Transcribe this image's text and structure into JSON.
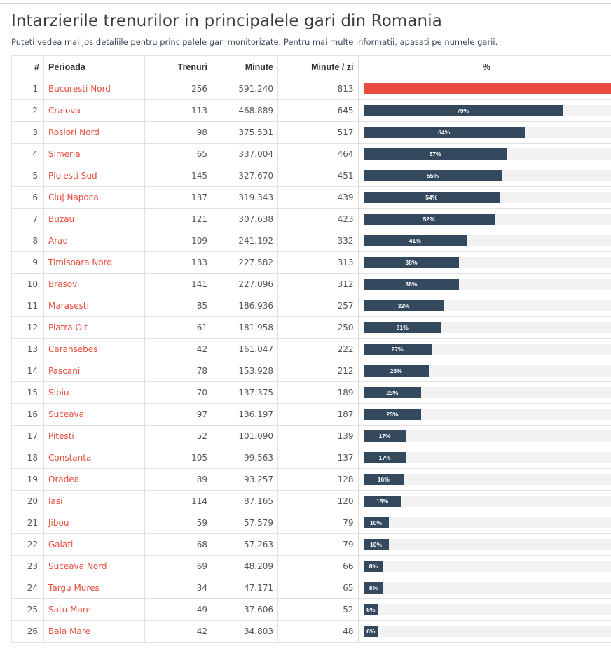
{
  "page": {
    "title": "Intarzierile trenurilor in principalele gari din Romania",
    "subtitle": "Puteti vedea mai jos detaliile pentru principalele gari monitorizate. Pentru mai multe informatii, apasati pe numele garii."
  },
  "table": {
    "headers": {
      "rank": "#",
      "name": "Perioada",
      "trenuri": "Trenuri",
      "minute": "Minute",
      "minute_zi": "Minute / zi",
      "pct": "%"
    },
    "colors": {
      "bar": "#34495e",
      "bar_top": "#e74c3c",
      "link": "#e74c3c"
    },
    "rows": [
      {
        "rank": "1",
        "name": "Bucuresti Nord",
        "trenuri": "256",
        "minute": "591.240",
        "minute_zi": "813",
        "pct": 100,
        "pct_label": ""
      },
      {
        "rank": "2",
        "name": "Craiova",
        "trenuri": "113",
        "minute": "468.889",
        "minute_zi": "645",
        "pct": 79,
        "pct_label": "79%"
      },
      {
        "rank": "3",
        "name": "Rosiori Nord",
        "trenuri": "98",
        "minute": "375.531",
        "minute_zi": "517",
        "pct": 64,
        "pct_label": "64%"
      },
      {
        "rank": "4",
        "name": "Simeria",
        "trenuri": "65",
        "minute": "337.004",
        "minute_zi": "464",
        "pct": 57,
        "pct_label": "57%"
      },
      {
        "rank": "5",
        "name": "Ploiesti Sud",
        "trenuri": "145",
        "minute": "327.670",
        "minute_zi": "451",
        "pct": 55,
        "pct_label": "55%"
      },
      {
        "rank": "6",
        "name": "Cluj Napoca",
        "trenuri": "137",
        "minute": "319.343",
        "minute_zi": "439",
        "pct": 54,
        "pct_label": "54%"
      },
      {
        "rank": "7",
        "name": "Buzau",
        "trenuri": "121",
        "minute": "307.638",
        "minute_zi": "423",
        "pct": 52,
        "pct_label": "52%"
      },
      {
        "rank": "8",
        "name": "Arad",
        "trenuri": "109",
        "minute": "241.192",
        "minute_zi": "332",
        "pct": 41,
        "pct_label": "41%"
      },
      {
        "rank": "9",
        "name": "Timisoara Nord",
        "trenuri": "133",
        "minute": "227.582",
        "minute_zi": "313",
        "pct": 38,
        "pct_label": "38%"
      },
      {
        "rank": "10",
        "name": "Brasov",
        "trenuri": "141",
        "minute": "227.096",
        "minute_zi": "312",
        "pct": 38,
        "pct_label": "38%"
      },
      {
        "rank": "11",
        "name": "Marasesti",
        "trenuri": "85",
        "minute": "186.936",
        "minute_zi": "257",
        "pct": 32,
        "pct_label": "32%"
      },
      {
        "rank": "12",
        "name": "Piatra Olt",
        "trenuri": "61",
        "minute": "181.958",
        "minute_zi": "250",
        "pct": 31,
        "pct_label": "31%"
      },
      {
        "rank": "13",
        "name": "Caransebes",
        "trenuri": "42",
        "minute": "161.047",
        "minute_zi": "222",
        "pct": 27,
        "pct_label": "27%"
      },
      {
        "rank": "14",
        "name": "Pascani",
        "trenuri": "78",
        "minute": "153.928",
        "minute_zi": "212",
        "pct": 26,
        "pct_label": "26%"
      },
      {
        "rank": "15",
        "name": "Sibiu",
        "trenuri": "70",
        "minute": "137.375",
        "minute_zi": "189",
        "pct": 23,
        "pct_label": "23%"
      },
      {
        "rank": "16",
        "name": "Suceava",
        "trenuri": "97",
        "minute": "136.197",
        "minute_zi": "187",
        "pct": 23,
        "pct_label": "23%"
      },
      {
        "rank": "17",
        "name": "Pitesti",
        "trenuri": "52",
        "minute": "101.090",
        "minute_zi": "139",
        "pct": 17,
        "pct_label": "17%"
      },
      {
        "rank": "18",
        "name": "Constanta",
        "trenuri": "105",
        "minute": "99.563",
        "minute_zi": "137",
        "pct": 17,
        "pct_label": "17%"
      },
      {
        "rank": "19",
        "name": "Oradea",
        "trenuri": "89",
        "minute": "93.257",
        "minute_zi": "128",
        "pct": 16,
        "pct_label": "16%"
      },
      {
        "rank": "20",
        "name": "Iasi",
        "trenuri": "114",
        "minute": "87.165",
        "minute_zi": "120",
        "pct": 15,
        "pct_label": "15%"
      },
      {
        "rank": "21",
        "name": "Jibou",
        "trenuri": "59",
        "minute": "57.579",
        "minute_zi": "79",
        "pct": 10,
        "pct_label": "10%"
      },
      {
        "rank": "22",
        "name": "Galati",
        "trenuri": "68",
        "minute": "57.263",
        "minute_zi": "79",
        "pct": 10,
        "pct_label": "10%"
      },
      {
        "rank": "23",
        "name": "Suceava Nord",
        "trenuri": "69",
        "minute": "48.209",
        "minute_zi": "66",
        "pct": 8,
        "pct_label": "8%"
      },
      {
        "rank": "24",
        "name": "Targu Mures",
        "trenuri": "34",
        "minute": "47.171",
        "minute_zi": "65",
        "pct": 8,
        "pct_label": "8%"
      },
      {
        "rank": "25",
        "name": "Satu Mare",
        "trenuri": "49",
        "minute": "37.606",
        "minute_zi": "52",
        "pct": 6,
        "pct_label": "6%"
      },
      {
        "rank": "26",
        "name": "Baia Mare",
        "trenuri": "42",
        "minute": "34.803",
        "minute_zi": "48",
        "pct": 6,
        "pct_label": "6%"
      }
    ]
  }
}
